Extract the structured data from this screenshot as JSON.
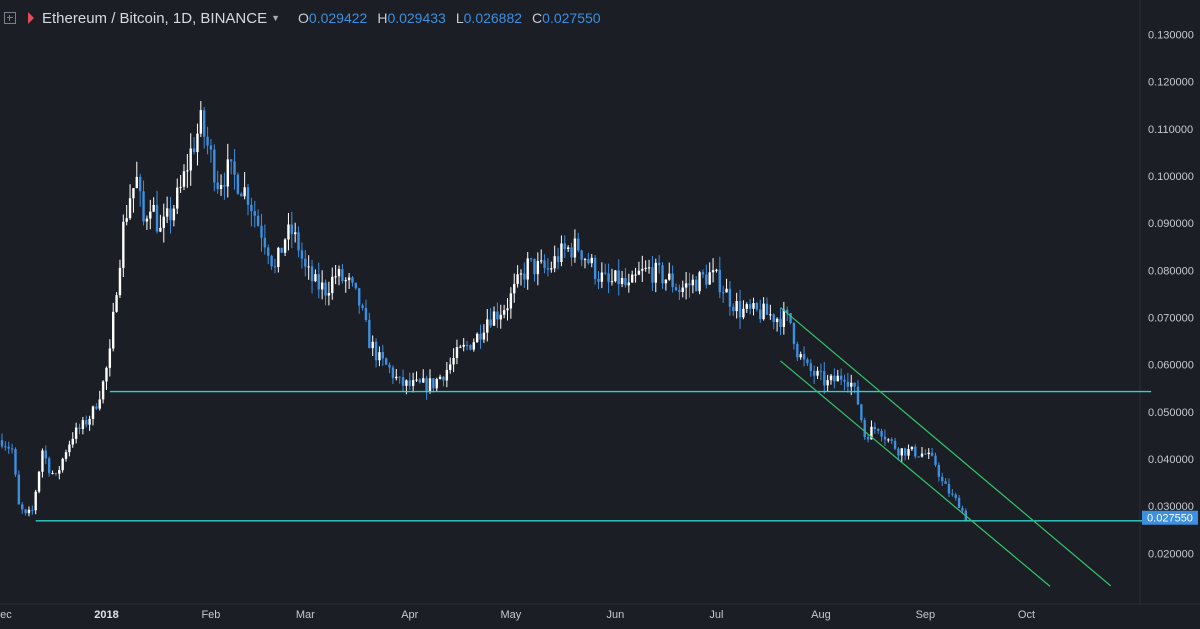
{
  "legend": {
    "symbol": "Ethereum / Bitcoin, 1D, BINANCE",
    "open_label": "O",
    "open": "0.029422",
    "high_label": "H",
    "high": "0.029433",
    "low_label": "L",
    "low": "0.026882",
    "close_label": "C",
    "close": "0.027550"
  },
  "colors": {
    "background": "#1b1e25",
    "up_candle": "#ffffff",
    "down_candle": "#3d8fe0",
    "horizontal_line": "#2fd1c8",
    "channel_line": "#34c46b",
    "price_tag": "#3d8fe0"
  },
  "chart_data": {
    "type": "candlestick",
    "title": "Ethereum / Bitcoin, 1D, BINANCE",
    "x_axis_labels": [
      "Dec",
      "2018",
      "Feb",
      "Mar",
      "Apr",
      "May",
      "Jun",
      "Jul",
      "Aug",
      "Sep",
      "Oct"
    ],
    "y_axis_labels": [
      "0.130000",
      "0.120000",
      "0.110000",
      "0.100000",
      "0.090000",
      "0.080000",
      "0.070000",
      "0.060000",
      "0.050000",
      "0.040000",
      "0.030000",
      "0.020000"
    ],
    "ylim": [
      0.0135,
      0.1335
    ],
    "last_price_label": "0.027550",
    "close_path": [
      [
        "2017-12-01",
        0.044
      ],
      [
        "2017-12-04",
        0.042
      ],
      [
        "2017-12-06",
        0.03
      ],
      [
        "2017-12-08",
        0.028
      ],
      [
        "2017-12-10",
        0.029
      ],
      [
        "2017-12-13",
        0.042
      ],
      [
        "2017-12-15",
        0.038
      ],
      [
        "2017-12-17",
        0.036
      ],
      [
        "2017-12-20",
        0.042
      ],
      [
        "2017-12-22",
        0.045
      ],
      [
        "2017-12-25",
        0.047
      ],
      [
        "2017-12-28",
        0.05
      ],
      [
        "2017-12-31",
        0.056
      ],
      [
        "2018-01-02",
        0.062
      ],
      [
        "2018-01-04",
        0.077
      ],
      [
        "2018-01-06",
        0.089
      ],
      [
        "2018-01-08",
        0.096
      ],
      [
        "2018-01-10",
        0.099
      ],
      [
        "2018-01-12",
        0.09
      ],
      [
        "2018-01-14",
        0.095
      ],
      [
        "2018-01-17",
        0.088
      ],
      [
        "2018-01-20",
        0.092
      ],
      [
        "2018-01-23",
        0.097
      ],
      [
        "2018-01-26",
        0.105
      ],
      [
        "2018-01-29",
        0.111
      ],
      [
        "2018-02-01",
        0.104
      ],
      [
        "2018-02-03",
        0.099
      ],
      [
        "2018-02-06",
        0.101
      ],
      [
        "2018-02-09",
        0.099
      ],
      [
        "2018-02-12",
        0.096
      ],
      [
        "2018-02-15",
        0.09
      ],
      [
        "2018-02-18",
        0.085
      ],
      [
        "2018-02-20",
        0.08
      ],
      [
        "2018-02-23",
        0.087
      ],
      [
        "2018-02-25",
        0.088
      ],
      [
        "2018-02-27",
        0.085
      ],
      [
        "2018-03-01",
        0.08
      ],
      [
        "2018-03-04",
        0.077
      ],
      [
        "2018-03-07",
        0.076
      ],
      [
        "2018-03-10",
        0.079
      ],
      [
        "2018-03-14",
        0.077
      ],
      [
        "2018-03-17",
        0.073
      ],
      [
        "2018-03-20",
        0.065
      ],
      [
        "2018-03-23",
        0.061
      ],
      [
        "2018-03-26",
        0.059
      ],
      [
        "2018-03-29",
        0.056
      ],
      [
        "2018-04-01",
        0.0555
      ],
      [
        "2018-04-04",
        0.0555
      ],
      [
        "2018-04-08",
        0.056
      ],
      [
        "2018-04-12",
        0.059
      ],
      [
        "2018-04-15",
        0.062
      ],
      [
        "2018-04-18",
        0.064
      ],
      [
        "2018-04-21",
        0.066
      ],
      [
        "2018-04-24",
        0.07
      ],
      [
        "2018-04-27",
        0.071
      ],
      [
        "2018-04-30",
        0.073
      ],
      [
        "2018-05-03",
        0.077
      ],
      [
        "2018-05-06",
        0.081
      ],
      [
        "2018-05-09",
        0.0805
      ],
      [
        "2018-05-12",
        0.08
      ],
      [
        "2018-05-15",
        0.083
      ],
      [
        "2018-05-18",
        0.0845
      ],
      [
        "2018-05-21",
        0.085
      ],
      [
        "2018-05-24",
        0.082
      ],
      [
        "2018-05-27",
        0.079
      ],
      [
        "2018-05-30",
        0.077
      ],
      [
        "2018-06-02",
        0.078
      ],
      [
        "2018-06-05",
        0.076
      ],
      [
        "2018-06-08",
        0.079
      ],
      [
        "2018-06-11",
        0.08
      ],
      [
        "2018-06-14",
        0.079
      ],
      [
        "2018-06-17",
        0.078
      ],
      [
        "2018-06-20",
        0.076
      ],
      [
        "2018-06-23",
        0.077
      ],
      [
        "2018-06-26",
        0.078
      ],
      [
        "2018-06-29",
        0.079
      ],
      [
        "2018-07-02",
        0.0775
      ],
      [
        "2018-07-05",
        0.074
      ],
      [
        "2018-07-08",
        0.0715
      ],
      [
        "2018-07-11",
        0.071
      ],
      [
        "2018-07-14",
        0.071
      ],
      [
        "2018-07-17",
        0.0705
      ],
      [
        "2018-07-19",
        0.07
      ],
      [
        "2018-07-21",
        0.07
      ],
      [
        "2018-07-23",
        0.069
      ],
      [
        "2018-07-25",
        0.063
      ],
      [
        "2018-07-28",
        0.059
      ],
      [
        "2018-07-31",
        0.0575
      ],
      [
        "2018-08-03",
        0.056
      ],
      [
        "2018-08-06",
        0.057
      ],
      [
        "2018-08-08",
        0.058
      ],
      [
        "2018-08-10",
        0.056
      ],
      [
        "2018-08-12",
        0.052
      ],
      [
        "2018-08-14",
        0.045
      ],
      [
        "2018-08-16",
        0.046
      ],
      [
        "2018-08-18",
        0.047
      ],
      [
        "2018-08-21",
        0.044
      ],
      [
        "2018-08-24",
        0.042
      ],
      [
        "2018-08-28",
        0.0415
      ],
      [
        "2018-09-01",
        0.041
      ],
      [
        "2018-09-04",
        0.039
      ],
      [
        "2018-09-06",
        0.035
      ],
      [
        "2018-09-09",
        0.032
      ],
      [
        "2018-09-11",
        0.0305
      ],
      [
        "2018-09-13",
        0.0275
      ]
    ],
    "horizontal_lines": [
      {
        "from": "2018-01-02",
        "to": "2018-11-07",
        "y": 0.0543
      },
      {
        "from": "2017-12-11",
        "to": "2018-11-07",
        "y": 0.0269
      }
    ],
    "channel_lines": [
      {
        "from": [
          "2018-07-20",
          0.0721
        ],
        "to": [
          "2018-10-26",
          0.0131
        ]
      },
      {
        "from": [
          "2018-07-20",
          0.0608
        ],
        "to": [
          "2018-10-08",
          0.013
        ]
      }
    ]
  }
}
